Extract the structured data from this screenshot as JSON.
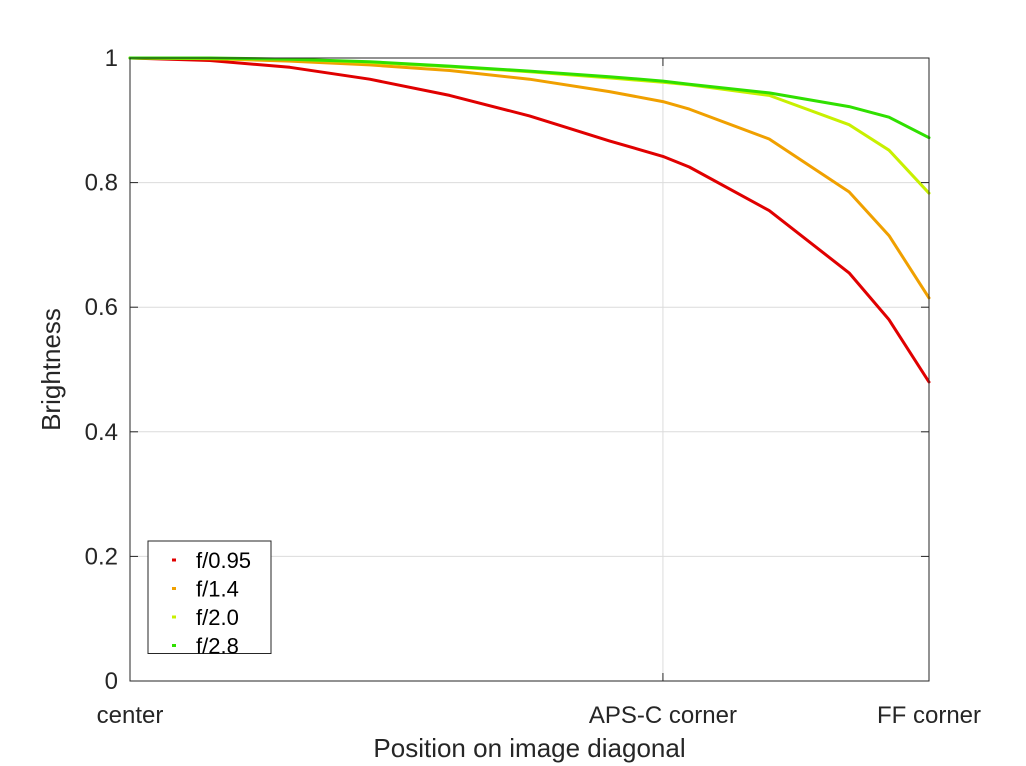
{
  "chart_data": {
    "type": "line",
    "title": "",
    "xlabel": "Position on image diagonal",
    "ylabel": "Brightness",
    "xlim": [
      0,
      1
    ],
    "ylim": [
      0,
      1
    ],
    "xticks": [
      {
        "value": 0,
        "label": "center"
      },
      {
        "value": 0.667,
        "label": "APS-C corner"
      },
      {
        "value": 1,
        "label": "FF corner"
      }
    ],
    "yticks": [
      {
        "value": 0,
        "label": "0"
      },
      {
        "value": 0.2,
        "label": "0.2"
      },
      {
        "value": 0.4,
        "label": "0.4"
      },
      {
        "value": 0.6,
        "label": "0.6"
      },
      {
        "value": 0.8,
        "label": "0.8"
      },
      {
        "value": 1,
        "label": "1"
      }
    ],
    "grid": true,
    "legend_position": "bottom-left",
    "x": [
      0,
      0.1,
      0.2,
      0.3,
      0.4,
      0.5,
      0.6,
      0.667,
      0.7,
      0.8,
      0.9,
      0.95,
      1.0
    ],
    "series": [
      {
        "name": "f/0.95",
        "color": "#e00000",
        "values": [
          1.0,
          0.996,
          0.985,
          0.966,
          0.94,
          0.907,
          0.867,
          0.842,
          0.825,
          0.755,
          0.655,
          0.58,
          0.48
        ]
      },
      {
        "name": "f/1.4",
        "color": "#f0a000",
        "values": [
          1.0,
          0.999,
          0.995,
          0.989,
          0.98,
          0.966,
          0.946,
          0.93,
          0.918,
          0.87,
          0.785,
          0.715,
          0.615
        ]
      },
      {
        "name": "f/2.0",
        "color": "#c8f000",
        "values": [
          1.0,
          0.999,
          0.998,
          0.993,
          0.986,
          0.978,
          0.968,
          0.961,
          0.957,
          0.94,
          0.893,
          0.852,
          0.783
        ]
      },
      {
        "name": "f/2.8",
        "color": "#30e000",
        "values": [
          1.0,
          1.0,
          0.998,
          0.994,
          0.987,
          0.979,
          0.97,
          0.963,
          0.958,
          0.944,
          0.922,
          0.905,
          0.872
        ]
      }
    ]
  }
}
